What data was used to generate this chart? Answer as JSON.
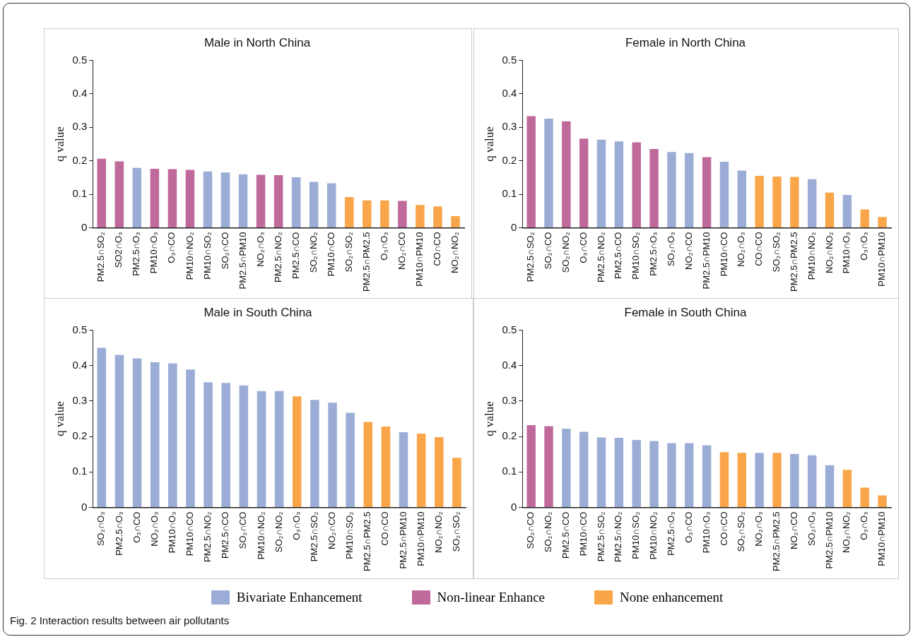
{
  "chart_data": [
    {
      "type": "bar",
      "title": "Male in North China",
      "ylabel": "q value",
      "stacked": true,
      "ylim": [
        0,
        0.5
      ],
      "yticks": [
        0,
        0.1,
        0.2,
        0.3,
        0.4,
        0.5
      ],
      "categories": [
        "PM2.5∩SO₂",
        "SO2∩O₃",
        "PM2.5∩O₃",
        "PM10∩O₃",
        "O₃∩CO",
        "PM10∩NO₂",
        "PM10∩SO₂",
        "SO₂∩CO",
        "PM2.5∩PM10",
        "NO₂∩O₃",
        "PM2.5∩NO₂",
        "PM2.5∩CO",
        "SO₂∩NO₂",
        "PM10∩CO",
        "SO₂∩SO₂",
        "PM2.5∩PM2.5",
        "O₃∩O₃",
        "NO₂∩CO",
        "PM10∩PM10",
        "CO∩CO",
        "NO₂∩NO₂"
      ],
      "series": [
        {
          "color": "#9badd6",
          "values": [
            null,
            null,
            0.179,
            null,
            null,
            null,
            0.168,
            0.165,
            0.16,
            null,
            null,
            0.151,
            0.137,
            0.133,
            null,
            null,
            null,
            null,
            null,
            null,
            null
          ]
        },
        {
          "color": "#c0699b",
          "values": [
            0.206,
            0.198,
            null,
            0.176,
            0.175,
            0.173,
            null,
            null,
            null,
            0.158,
            0.157,
            null,
            null,
            null,
            null,
            null,
            null,
            0.08,
            null,
            null,
            null
          ]
        },
        {
          "color": "#f9a64a",
          "values": [
            null,
            null,
            null,
            null,
            null,
            null,
            null,
            null,
            null,
            null,
            null,
            null,
            null,
            null,
            0.092,
            0.082,
            0.082,
            null,
            0.068,
            0.064,
            0.035
          ]
        }
      ]
    },
    {
      "type": "bar",
      "title": "Female in North China",
      "ylabel": "q value",
      "stacked": true,
      "ylim": [
        0,
        0.5
      ],
      "yticks": [
        0,
        0.1,
        0.2,
        0.3,
        0.4,
        0.5
      ],
      "categories": [
        "PM2.5∩SO₂",
        "SO₂∩CO",
        "SO₂∩NO₂",
        "O₃∩CO",
        "PM2.5∩NO₂",
        "PM2.5∩CO",
        "PM10∩SO₂",
        "PM2.5∩O₃",
        "SO₂∩O₃",
        "NO₂∩CO",
        "PM2.5∩PM10",
        "PM10∩CO",
        "NO₂∩O₃",
        "CO∩CO",
        "SO₂∩SO₂",
        "PM2.5∩PM2.5",
        "PM10∩NO₂",
        "NO₂∩NO₂",
        "PM10∩O₃",
        "O₃∩O₃",
        "PM10∩PM10"
      ],
      "series": [
        {
          "color": "#9badd6",
          "values": [
            null,
            0.326,
            null,
            null,
            0.263,
            0.258,
            null,
            null,
            0.226,
            0.223,
            null,
            0.197,
            0.171,
            null,
            null,
            null,
            0.145,
            null,
            0.098,
            null,
            null
          ]
        },
        {
          "color": "#c0699b",
          "values": [
            0.333,
            null,
            0.318,
            0.266,
            null,
            null,
            0.255,
            0.235,
            null,
            null,
            0.211,
            null,
            null,
            null,
            null,
            null,
            null,
            null,
            null,
            null,
            null
          ]
        },
        {
          "color": "#f9a64a",
          "values": [
            null,
            null,
            null,
            null,
            null,
            null,
            null,
            null,
            null,
            null,
            null,
            null,
            null,
            0.155,
            0.153,
            0.152,
            null,
            0.105,
            null,
            0.055,
            0.032
          ]
        }
      ]
    },
    {
      "type": "bar",
      "title": "Male in South China",
      "ylabel": "q value",
      "stacked": true,
      "ylim": [
        0,
        0.5
      ],
      "yticks": [
        0,
        0.1,
        0.2,
        0.3,
        0.4,
        0.5
      ],
      "categories": [
        "SO₂∩O₃",
        "PM2.5∩O₃",
        "O₃∩CO",
        "NO₂∩O₃",
        "PM10∩O₃",
        "PM10∩CO",
        "PM2.5∩NO₂",
        "PM2.5∩CO",
        "SO₂∩CO",
        "PM10∩NO₂",
        "SO₂∩NO₂",
        "O₃∩O₃",
        "PM2.5∩SO₂",
        "NO₂∩CO",
        "PM10∩SO₂",
        "PM2.5∩PM2.5",
        "CO∩CO",
        "PM2.5∩PM10",
        "PM10∩PM10",
        "NO₂∩NO₂",
        "SO₂∩SO₂"
      ],
      "series": [
        {
          "color": "#9badd6",
          "values": [
            0.45,
            0.43,
            0.42,
            0.409,
            0.406,
            0.389,
            0.353,
            0.351,
            0.344,
            0.328,
            0.328,
            null,
            0.303,
            0.295,
            0.267,
            null,
            null,
            0.212,
            null,
            null,
            null
          ]
        },
        {
          "color": "#f9a64a",
          "values": [
            null,
            null,
            null,
            null,
            null,
            null,
            null,
            null,
            null,
            null,
            null,
            0.313,
            null,
            null,
            null,
            0.241,
            0.228,
            null,
            0.208,
            0.198,
            0.14
          ]
        }
      ]
    },
    {
      "type": "bar",
      "title": "Female in South China",
      "ylabel": "q value",
      "stacked": true,
      "ylim": [
        0,
        0.5
      ],
      "yticks": [
        0,
        0.1,
        0.2,
        0.3,
        0.4,
        0.5
      ],
      "legend": "bottom",
      "annotations": [
        "Fig. 2 Interaction results between air pollutants"
      ],
      "categories": [
        "SO₂∩CO",
        "SO₂∩NO₂",
        "PM2.5∩CO",
        "PM10∩CO",
        "PM2.5∩SO₂",
        "PM2.5∩NO₂",
        "PM10∩SO₂",
        "PM10∩NO₂",
        "PM2.5∩O₃",
        "O₃∩CO",
        "PM10∩O₃",
        "CO∩CO",
        "SO₂∩SO₂",
        "NO₂∩O₃",
        "PM2.5∩PM2.5",
        "NO₂∩CO",
        "SO₂∩O₃",
        "PM2.5∩PM10",
        "NO₂∩NO₂",
        "O₃∩O₃",
        "PM10∩PM10"
      ],
      "series": [
        {
          "name": "Bivariate Enhancement",
          "color": "#9badd6",
          "values": [
            null,
            null,
            0.222,
            0.213,
            0.197,
            0.196,
            0.19,
            0.187,
            0.181,
            0.181,
            0.175,
            null,
            null,
            0.154,
            null,
            0.151,
            0.147,
            0.119,
            null,
            null,
            null
          ]
        },
        {
          "name": "Non-linear Enhance",
          "color": "#c0699b",
          "values": [
            0.232,
            0.229,
            null,
            null,
            null,
            null,
            null,
            null,
            null,
            null,
            null,
            null,
            null,
            null,
            null,
            null,
            null,
            null,
            null,
            null,
            null
          ]
        },
        {
          "name": "None enhancement",
          "color": "#f9a64a",
          "values": [
            null,
            null,
            null,
            null,
            null,
            null,
            null,
            null,
            null,
            null,
            null,
            0.156,
            0.154,
            null,
            0.154,
            null,
            null,
            null,
            0.106,
            0.056,
            0.034
          ]
        }
      ]
    }
  ]
}
